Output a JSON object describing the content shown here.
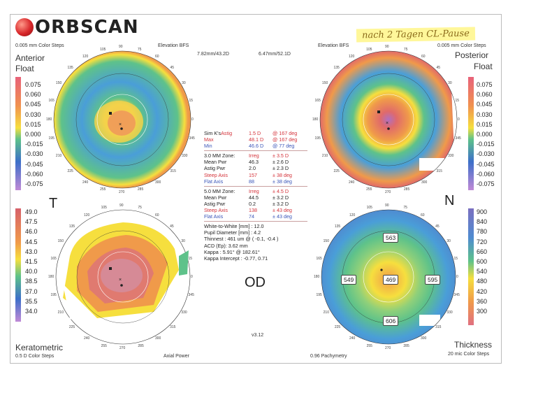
{
  "logo": {
    "text": "ORBSCAN"
  },
  "handwriting": "nach 2 Tagen CL-Pause",
  "ant": {
    "steps": "0.005 mm Color Steps",
    "title1": "Anterior",
    "title2": "Float",
    "elev": "Elevation BFS",
    "bfs": "7.82mm/43.2D"
  },
  "post": {
    "steps": "0.005 mm Color Steps",
    "title1": "Posterior",
    "title2": "Float",
    "elev": "Elevation BFS",
    "bfs": "6.47mm/52.1D"
  },
  "float_scale": [
    "0.075",
    "0.060",
    "0.045",
    "0.030",
    "0.015",
    "0.000",
    "-0.015",
    "-0.030",
    "-0.045",
    "-0.060",
    "-0.075"
  ],
  "ker_scale": [
    "49.0",
    "47.5",
    "46.0",
    "44.5",
    "43.0",
    "41.5",
    "40.0",
    "38.5",
    "37.0",
    "35.5",
    "34.0"
  ],
  "pach_scale": [
    "900",
    "840",
    "780",
    "720",
    "660",
    "600",
    "540",
    "480",
    "420",
    "360",
    "300"
  ],
  "colors": {
    "scale_top": "#e8627a",
    "scale_mid": "#f6df3e",
    "scale_green": "#5ec28a",
    "scale_blue": "#3d6fc9",
    "scale_bot": "#c08ad6"
  },
  "T": "T",
  "N": "N",
  "OD": "OD",
  "sim": {
    "label": "Sim K's",
    "astig": "Astig",
    "astig_v": "1.5 D",
    "astig_deg": "@ 167 deg",
    "max": "Max",
    "max_v": "48.1 D",
    "max_deg": "@ 167 deg",
    "min": "Min",
    "min_v": "46.6 D",
    "min_deg": "@ 77 deg"
  },
  "z3": {
    "title": "3.0 MM Zone:",
    "ireg": "Irreg",
    "ireg_v": "± 3.5 D",
    "mean": "Mean Pwr",
    "mean_v": "46.3",
    "mean_pm": "± 2.6 D",
    "astig": "Astig Pwr",
    "astig_v": "2.0",
    "astig_pm": "± 2.3 D",
    "steep": "Steep Axis",
    "steep_v": "157",
    "steep_pm": "± 38 deg",
    "flat": "Flat Axis",
    "flat_v": "88",
    "flat_pm": "± 38 deg"
  },
  "z5": {
    "title": "5.0 MM Zone:",
    "ireg": "Irreg",
    "ireg_v": "± 4.5 D",
    "mean": "Mean Pwr",
    "mean_v": "44.5",
    "mean_pm": "± 3.2 D",
    "astig": "Astig Pwr",
    "astig_v": "0.2",
    "astig_pm": "± 3.2 D",
    "steep": "Steep Axis",
    "steep_v": "138",
    "steep_pm": "± 43 deg",
    "flat": "Flat Axis",
    "flat_v": "74",
    "flat_pm": "± 43 deg"
  },
  "misc": {
    "wtw": "White-to-White [mm] : 12.0",
    "pupil": "Pupil Diameter [mm] : 4.2",
    "thin": "Thinnest : 461 um @ ( -0.1, -0.4 )",
    "acd": "ACD (Ep): 3.62 mm",
    "kappa": "Kappa : 5.91° @ 182.61°",
    "kappa_int": "Kappa Intercept : -0.77, 0.71"
  },
  "version": "v3.12",
  "ker": {
    "title": "Keratometric",
    "steps": "0.5 D Color Steps",
    "type": "Axial Power"
  },
  "pach": {
    "title": "Thickness",
    "steps": "20 mic Color Steps",
    "type": "0.96 Pachymetry"
  },
  "thickness_values": {
    "top": "563",
    "left": "549",
    "center": "469",
    "right": "595",
    "bottom": "606"
  },
  "ring_ticks": [
    "90",
    "105",
    "120",
    "135",
    "150",
    "165",
    "180",
    "195",
    "210",
    "225",
    "240",
    "255",
    "270",
    "285",
    "300",
    "315",
    "330",
    "345",
    "0",
    "15",
    "30",
    "45",
    "60",
    "75"
  ]
}
